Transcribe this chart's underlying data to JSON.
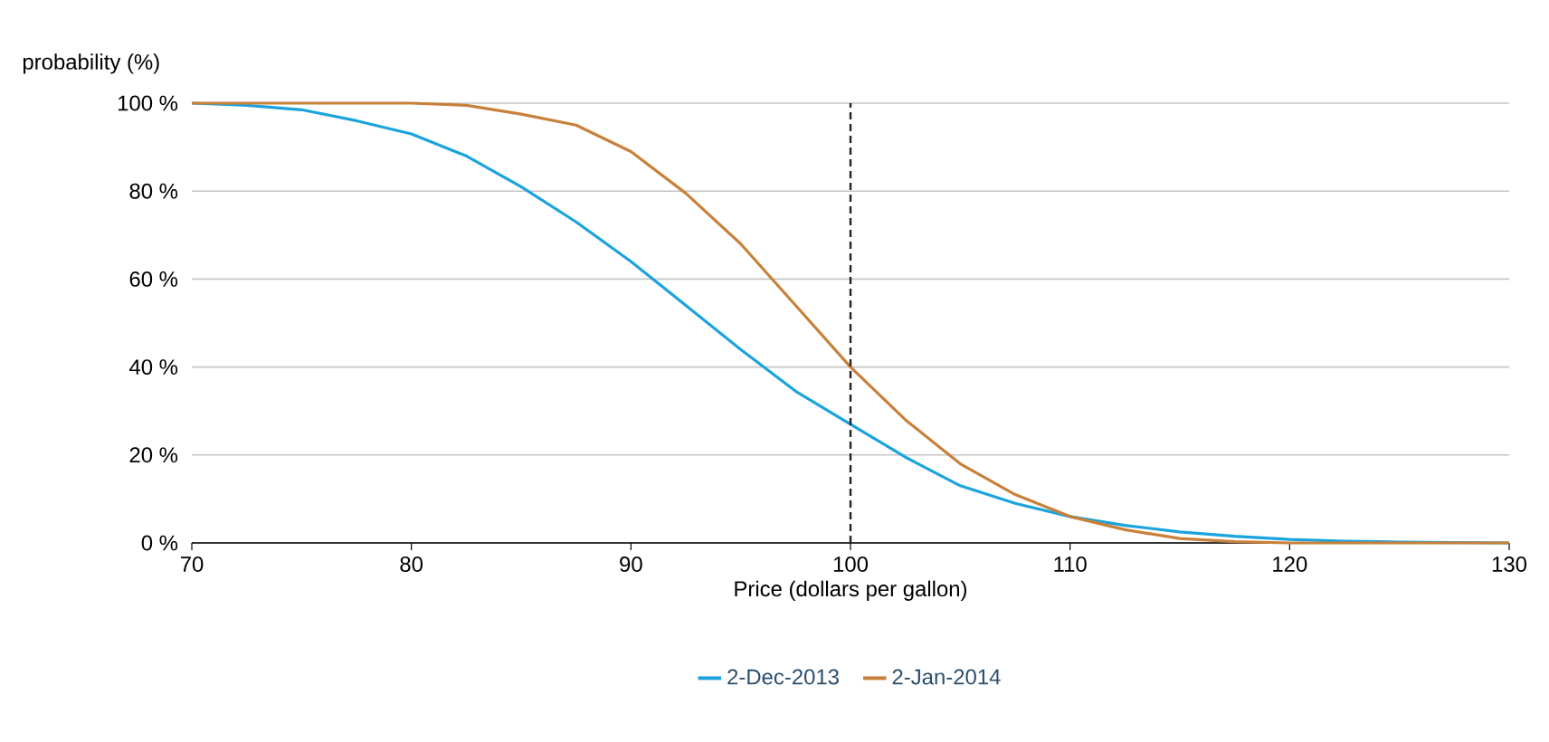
{
  "chart_data": {
    "type": "line",
    "ylabel": "probability (%)",
    "xlabel": "Price (dollars per gallon)",
    "series": [
      {
        "name": "2-Dec-2013",
        "color": "#1ba3dd",
        "x": [
          70,
          72.5,
          75,
          77.5,
          80,
          82.5,
          85,
          87.5,
          90,
          92.5,
          95,
          97.5,
          100,
          102.5,
          105,
          107.5,
          110,
          112.5,
          115,
          117.5,
          120,
          122.5,
          125,
          130
        ],
        "values": [
          100,
          99.5,
          98.5,
          96,
          93,
          88,
          81,
          73,
          64,
          54,
          44,
          34.5,
          27,
          19.5,
          13,
          9,
          6,
          4,
          2.5,
          1.5,
          0.8,
          0.4,
          0.2,
          0
        ]
      },
      {
        "name": "2-Jan-2014",
        "color": "#c8803a",
        "x": [
          70,
          75,
          80,
          82.5,
          85,
          87.5,
          90,
          92.5,
          95,
          97.5,
          100,
          102.5,
          105,
          107.5,
          110,
          112.5,
          115,
          117.5,
          120,
          125,
          130
        ],
        "values": [
          100,
          100,
          100,
          99.5,
          97.5,
          95,
          89,
          79.5,
          68,
          54,
          40,
          28,
          18,
          11,
          6,
          3,
          1,
          0.3,
          0,
          0,
          0
        ]
      }
    ],
    "xlim": [
      70,
      130
    ],
    "xticks": [
      70,
      80,
      90,
      100,
      110,
      120,
      130
    ],
    "ylim": [
      0,
      100
    ],
    "yticks": [
      {
        "value": 0,
        "label": "0 %"
      },
      {
        "value": 20,
        "label": "20 %"
      },
      {
        "value": 40,
        "label": "40 %"
      },
      {
        "value": 60,
        "label": "60 %"
      },
      {
        "value": 80,
        "label": "80 %"
      },
      {
        "value": 100,
        "label": "100 %"
      }
    ],
    "ref_lines": [
      {
        "axis": "x",
        "value": 100,
        "color": "#222222",
        "line_style": "dashed"
      }
    ],
    "grid": "y",
    "legend": "bottom",
    "marker": "none",
    "line_style": "solid"
  }
}
